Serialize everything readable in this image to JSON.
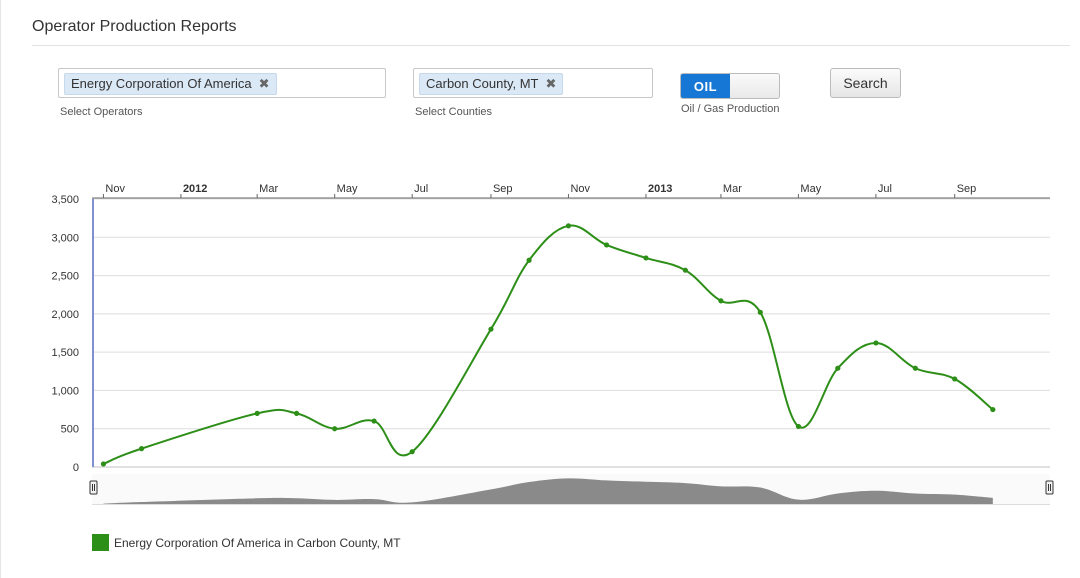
{
  "page": {
    "title": "Operator Production Reports"
  },
  "filters": {
    "operators": {
      "token": "Energy Corporation Of America",
      "remove_glyph": "✖",
      "caption": "Select Operators"
    },
    "counties": {
      "token": "Carbon County, MT",
      "remove_glyph": "✖",
      "caption": "Select Counties"
    },
    "production_toggle": {
      "on_label": "OIL",
      "caption": "Oil / Gas Production",
      "selected": "OIL"
    },
    "search_label": "Search"
  },
  "colors": {
    "series": "#2d8f18",
    "toggle_on": "#1777d4",
    "navigator": "#8a8a8a",
    "token_bg": "#dbe8f5"
  },
  "chart_data": {
    "type": "line",
    "title": "",
    "xlabel": "",
    "ylabel": "",
    "ylim": [
      0,
      3500
    ],
    "yticks": [
      "0",
      "500",
      "1,000",
      "1,500",
      "2,000",
      "2,500",
      "3,000",
      "3,500"
    ],
    "xticks": [
      {
        "label": "Nov",
        "date": "2011-11-01",
        "bold": false
      },
      {
        "label": "2012",
        "date": "2012-01-01",
        "bold": true
      },
      {
        "label": "Mar",
        "date": "2012-03-01",
        "bold": false
      },
      {
        "label": "May",
        "date": "2012-05-01",
        "bold": false
      },
      {
        "label": "Jul",
        "date": "2012-07-01",
        "bold": false
      },
      {
        "label": "Sep",
        "date": "2012-09-01",
        "bold": false
      },
      {
        "label": "Nov",
        "date": "2012-11-01",
        "bold": false
      },
      {
        "label": "2013",
        "date": "2013-01-01",
        "bold": true
      },
      {
        "label": "Mar",
        "date": "2013-03-01",
        "bold": false
      },
      {
        "label": "May",
        "date": "2013-05-01",
        "bold": false
      },
      {
        "label": "Jul",
        "date": "2013-07-01",
        "bold": false
      },
      {
        "label": "Sep",
        "date": "2013-09-01",
        "bold": false
      }
    ],
    "xrange": [
      "2011-10-23",
      "2013-11-15"
    ],
    "grid": true,
    "legend_position": "bottom-left",
    "series": [
      {
        "name": "Energy Corporation Of America in Carbon County, MT",
        "x": [
          "2011-11-01",
          "2011-12-01",
          "2012-03-01",
          "2012-04-01",
          "2012-05-01",
          "2012-06-01",
          "2012-07-01",
          "2012-09-01",
          "2012-10-01",
          "2012-11-01",
          "2012-12-01",
          "2013-01-01",
          "2013-02-01",
          "2013-03-01",
          "2013-04-01",
          "2013-05-01",
          "2013-06-01",
          "2013-07-01",
          "2013-08-01",
          "2013-09-01",
          "2013-10-01"
        ],
        "values": [
          40,
          240,
          700,
          700,
          500,
          600,
          200,
          1800,
          2700,
          3150,
          2900,
          2730,
          2570,
          2170,
          2020,
          530,
          1290,
          1620,
          1290,
          1150,
          750
        ]
      }
    ]
  },
  "legend": {
    "label": "Energy Corporation Of America in Carbon County, MT"
  }
}
